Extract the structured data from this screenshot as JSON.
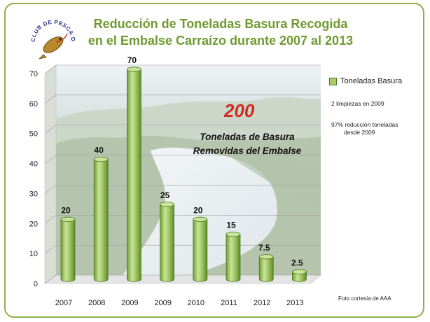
{
  "title_line1": "Reducción de Toneladas Basura Recogida",
  "title_line2": "en el Embalse Carraízo durante 2007 al 2013",
  "logo_text": "CLUB DE PESCA DE GURABO",
  "legend_label": "Toneladas Basura",
  "note_1": "2 limpiezas  en 2009",
  "note_2_line1": "97% reducción toneladas",
  "note_2_line2": "desde 2009",
  "big_number": "200",
  "big_caption_line1": "Toneladas de Basura",
  "big_caption_line2": "Removidas del Embalse",
  "photo_credit": "Foto cortesía de AAA",
  "colors": {
    "title": "#6e9a2f",
    "bar_fill": "#a9cd6e",
    "bar_edge": "#4e7a1f",
    "highlight": "#d12a20",
    "frame": "#8fb04a"
  },
  "chart_data": {
    "type": "bar",
    "title": "Reducción de Toneladas Basura Recogida en el Embalse Carraízo durante 2007 al 2013",
    "categories": [
      "2007",
      "2008",
      "2009",
      "2009",
      "2010",
      "2011",
      "2012",
      "2013"
    ],
    "series": [
      {
        "name": "Toneladas Basura",
        "values": [
          20,
          40,
          70,
          25,
          20,
          15,
          7.5,
          2.5
        ]
      }
    ],
    "data_labels": [
      "20",
      "40",
      "70",
      "25",
      "20",
      "15",
      "7.5",
      "2.5"
    ],
    "yticks": [
      "0",
      "10",
      "20",
      "30",
      "40",
      "50",
      "60",
      "70"
    ],
    "ylim": [
      0,
      70
    ],
    "grid": true,
    "legend": "right",
    "bar_style": "3d-cylinder"
  }
}
